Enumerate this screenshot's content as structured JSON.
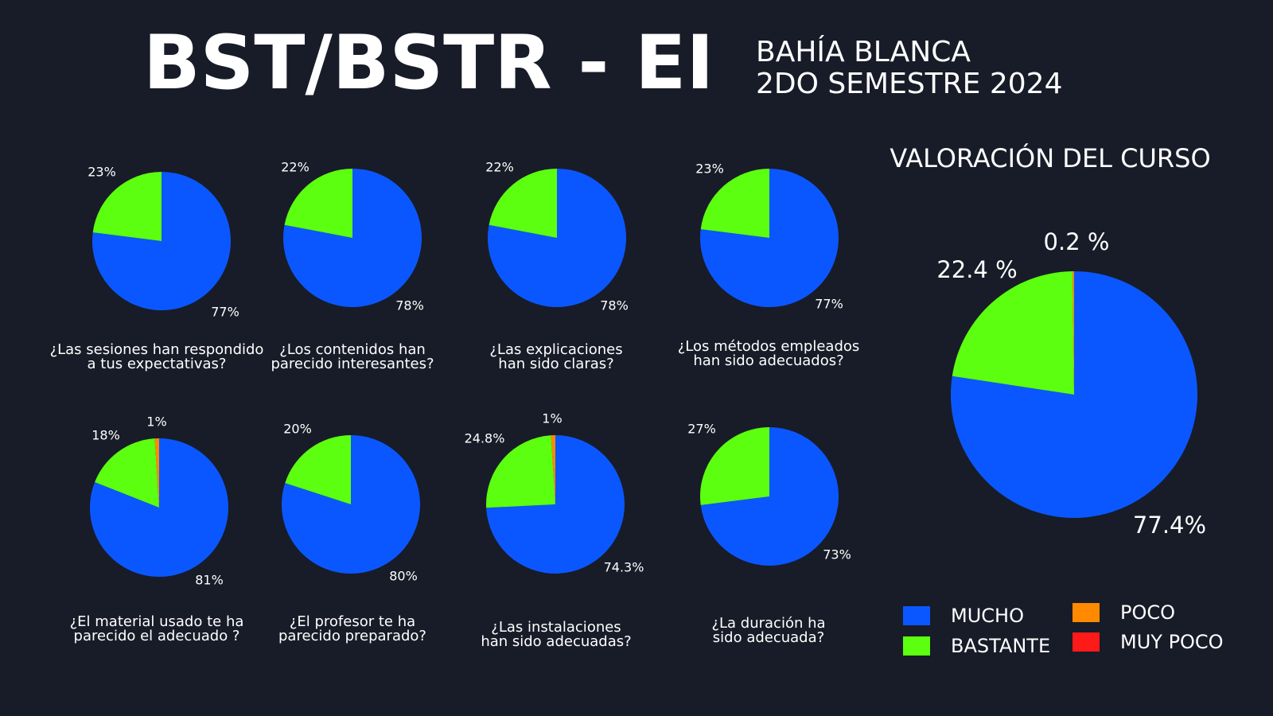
{
  "header": {
    "title": "BST/BSTR - EI",
    "subtitle_line1": "BAHÍA BLANCA",
    "subtitle_line2": "2DO SEMESTRE 2024"
  },
  "colors": {
    "mucho": "#0b57ff",
    "bastante": "#5cff10",
    "poco": "#ff8a00",
    "muy_poco": "#ff1a1a",
    "background": "#181c28"
  },
  "legend": {
    "mucho": "MUCHO",
    "bastante": "BASTANTE",
    "poco": "POCO",
    "muy_poco": "MUY POCO"
  },
  "chart_data": [
    {
      "type": "pie",
      "title_line1": "¿Las sesiones han respondido",
      "title_line2": "a tus expectativas?",
      "slices": [
        {
          "category": "MUCHO",
          "value": 77,
          "label": "77%"
        },
        {
          "category": "BASTANTE",
          "value": 23,
          "label": "23%"
        }
      ]
    },
    {
      "type": "pie",
      "title_line1": "¿Los contenidos han",
      "title_line2": "parecido interesantes?",
      "slices": [
        {
          "category": "MUCHO",
          "value": 78,
          "label": "78%"
        },
        {
          "category": "BASTANTE",
          "value": 22,
          "label": "22%"
        }
      ]
    },
    {
      "type": "pie",
      "title_line1": "¿Las explicaciones",
      "title_line2": "han sido claras?",
      "slices": [
        {
          "category": "MUCHO",
          "value": 78,
          "label": "78%"
        },
        {
          "category": "BASTANTE",
          "value": 22,
          "label": "22%"
        }
      ]
    },
    {
      "type": "pie",
      "title_line1": "¿Los métodos empleados",
      "title_line2": "han sido adecuados?",
      "slices": [
        {
          "category": "MUCHO",
          "value": 77,
          "label": "77%"
        },
        {
          "category": "BASTANTE",
          "value": 23,
          "label": "23%"
        }
      ]
    },
    {
      "type": "pie",
      "title_line1": "¿El material usado te ha",
      "title_line2": "parecido el adecuado ?",
      "slices": [
        {
          "category": "MUCHO",
          "value": 81,
          "label": "81%"
        },
        {
          "category": "BASTANTE",
          "value": 18,
          "label": "18%"
        },
        {
          "category": "POCO",
          "value": 1,
          "label": "1%"
        }
      ]
    },
    {
      "type": "pie",
      "title_line1": "¿El profesor te ha",
      "title_line2": "parecido preparado?",
      "slices": [
        {
          "category": "MUCHO",
          "value": 80,
          "label": "80%"
        },
        {
          "category": "BASTANTE",
          "value": 20,
          "label": "20%"
        }
      ]
    },
    {
      "type": "pie",
      "title_line1": "¿Las instalaciones",
      "title_line2": "han sido adecuadas?",
      "slices": [
        {
          "category": "MUCHO",
          "value": 74.3,
          "label": "74.3%"
        },
        {
          "category": "BASTANTE",
          "value": 24.8,
          "label": "24.8%"
        },
        {
          "category": "POCO",
          "value": 1,
          "label": "1%"
        }
      ]
    },
    {
      "type": "pie",
      "title_line1": "¿La duración ha",
      "title_line2": "sido adecuada?",
      "slices": [
        {
          "category": "MUCHO",
          "value": 73,
          "label": "73%"
        },
        {
          "category": "BASTANTE",
          "value": 27,
          "label": "27%"
        }
      ]
    },
    {
      "type": "pie",
      "title": "VALORACIÓN DEL CURSO",
      "slices": [
        {
          "category": "MUCHO",
          "value": 77.4,
          "label": "77.4%"
        },
        {
          "category": "BASTANTE",
          "value": 22.4,
          "label": "22.4 %"
        },
        {
          "category": "POCO",
          "value": 0.2,
          "label": "0.2 %"
        }
      ]
    }
  ]
}
